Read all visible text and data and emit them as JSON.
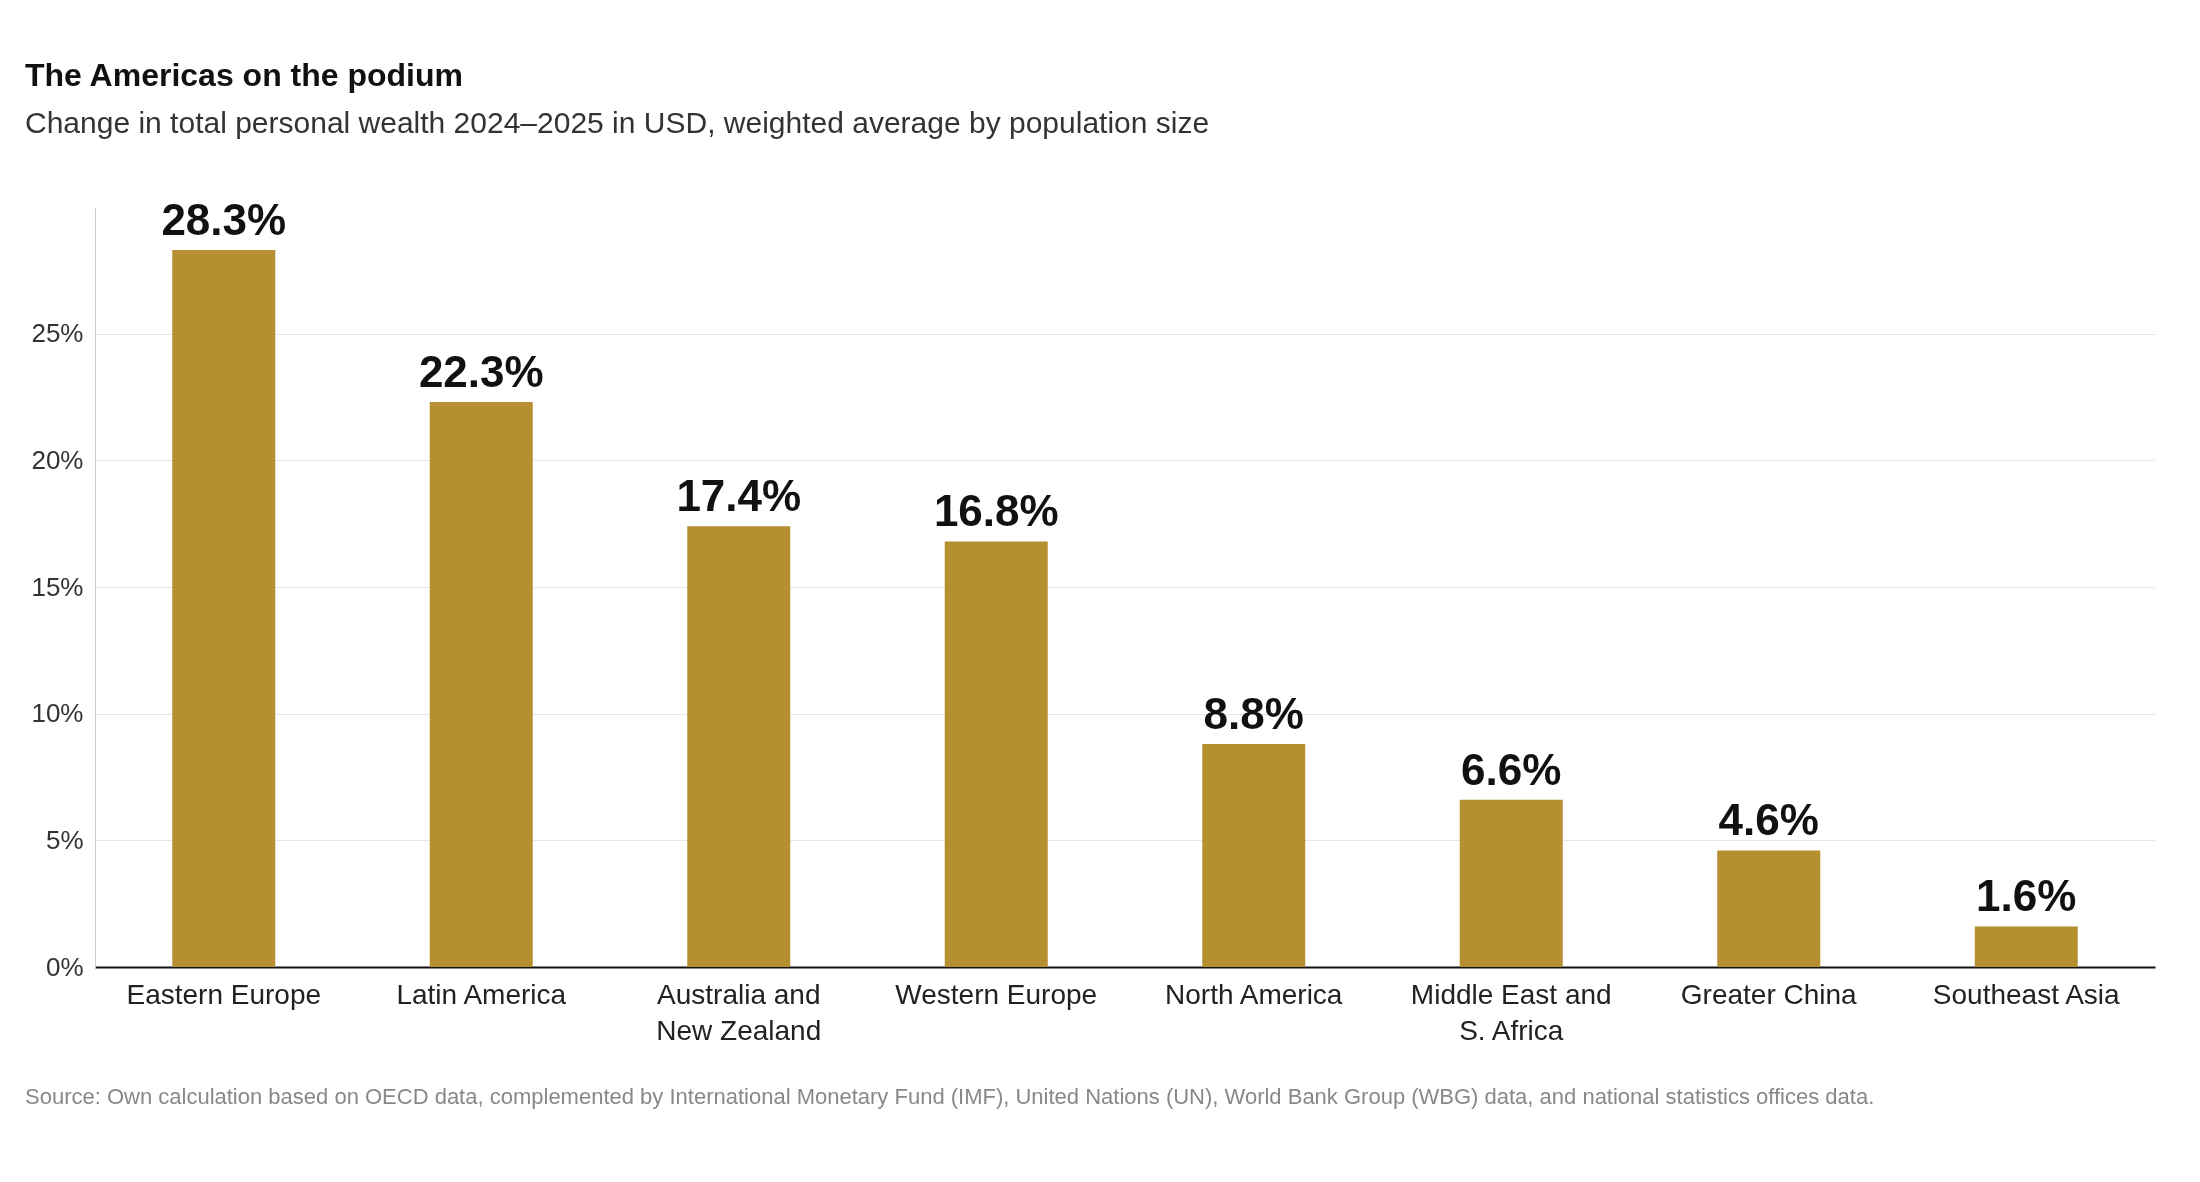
{
  "chart_data": {
    "type": "bar",
    "title": "The Americas on the podium",
    "subtitle": "Change in total personal wealth 2024–2025 in USD, weighted average by population size",
    "categories": [
      "Eastern Europe",
      "Latin America",
      "Australia and\nNew Zealand",
      "Western Europe",
      "North America",
      "Middle East and\nS. Africa",
      "Greater China",
      "Southeast Asia"
    ],
    "values": [
      28.3,
      22.3,
      17.4,
      16.8,
      8.8,
      6.6,
      4.6,
      1.6
    ],
    "value_labels": [
      "28.3%",
      "22.3%",
      "17.4%",
      "16.8%",
      "8.8%",
      "6.6%",
      "4.6%",
      "1.6%"
    ],
    "color": "#b68f30",
    "ylim": [
      0,
      30
    ],
    "yticks": [
      {
        "value": 0,
        "label": "0%"
      },
      {
        "value": 5,
        "label": "5%"
      },
      {
        "value": 10,
        "label": "10%"
      },
      {
        "value": 15,
        "label": "15%"
      },
      {
        "value": 20,
        "label": "20%"
      },
      {
        "value": 25,
        "label": "25%"
      }
    ],
    "grid": "y",
    "annotations": [
      "Source: Own calculation based on OECD data, complemented by International Monetary Fund (IMF), United Nations (UN), World Bank Group (WBG) data, and national statistics offices data."
    ]
  }
}
